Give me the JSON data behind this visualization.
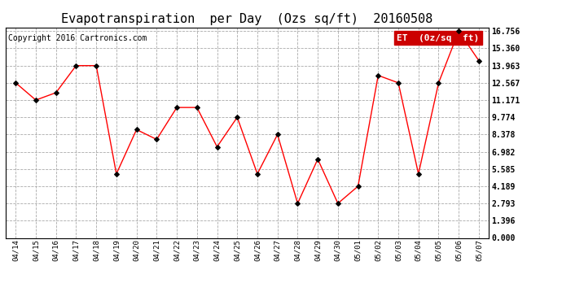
{
  "title": "Evapotranspiration  per Day  (Ozs sq/ft)  20160508",
  "copyright": "Copyright 2016 Cartronics.com",
  "legend_label": "ET  (0z/sq  ft)",
  "x_labels": [
    "04/14",
    "04/15",
    "04/16",
    "04/17",
    "04/18",
    "04/19",
    "04/20",
    "04/21",
    "04/22",
    "04/23",
    "04/24",
    "04/25",
    "04/26",
    "04/27",
    "04/28",
    "04/29",
    "04/30",
    "05/01",
    "05/02",
    "05/03",
    "05/04",
    "05/05",
    "05/06",
    "05/07"
  ],
  "y_values": [
    12.567,
    11.171,
    11.771,
    13.963,
    13.963,
    5.189,
    8.778,
    7.982,
    10.57,
    10.57,
    7.382,
    9.774,
    5.189,
    8.378,
    2.793,
    6.384,
    2.793,
    4.189,
    13.17,
    12.567,
    5.189,
    12.567,
    16.756,
    14.363
  ],
  "line_color": "red",
  "marker_color": "black",
  "background_color": "#ffffff",
  "grid_color": "#aaaaaa",
  "ylim": [
    0.0,
    16.756
  ],
  "yticks": [
    0.0,
    1.396,
    2.793,
    4.189,
    5.585,
    6.982,
    8.378,
    9.774,
    11.171,
    12.567,
    13.963,
    15.36,
    16.756
  ],
  "title_fontsize": 11,
  "copyright_fontsize": 7,
  "legend_bg_color": "#cc0000",
  "legend_text_color": "#ffffff",
  "legend_fontsize": 8
}
